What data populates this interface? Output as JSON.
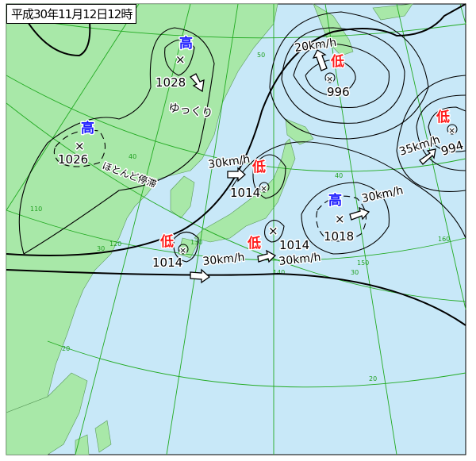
{
  "title": "平成30年11月12日12時",
  "colors": {
    "sea": "#c8e8f8",
    "land": "#a8e8a8",
    "grid": "#22aa22",
    "high": "#1a1aff",
    "low": "#ff1a1a"
  },
  "systems": [
    {
      "type": "high",
      "symbol": "高",
      "pressure": "1028",
      "movement": "ゆっくり"
    },
    {
      "type": "high",
      "symbol": "高",
      "pressure": "1026",
      "movement": "ほとんど停滞"
    },
    {
      "type": "low",
      "symbol": "低",
      "pressure": "996",
      "movement": "20km/h"
    },
    {
      "type": "low",
      "symbol": "低",
      "pressure": "994",
      "movement": "35km/h"
    },
    {
      "type": "low",
      "symbol": "低",
      "pressure": "1014",
      "movement": "30km/h"
    },
    {
      "type": "low",
      "symbol": "低",
      "pressure": "1014",
      "movement": "30km/h"
    },
    {
      "type": "low",
      "symbol": "低",
      "pressure": "1014",
      "movement": "30km/h"
    },
    {
      "type": "high",
      "symbol": "高",
      "pressure": "1018",
      "movement": "30km/h"
    }
  ],
  "grid_labels": {
    "lat": [
      "50",
      "40",
      "30",
      "20",
      "40",
      "30",
      "20"
    ],
    "lon": [
      "110",
      "120",
      "130",
      "140",
      "150",
      "160"
    ]
  }
}
